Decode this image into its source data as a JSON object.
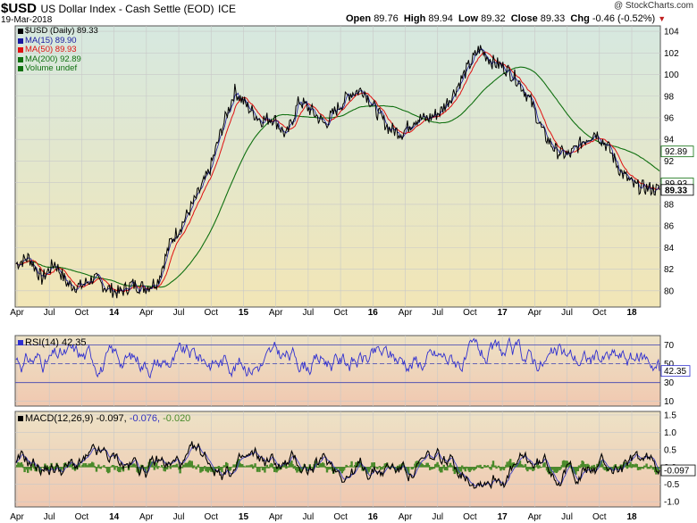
{
  "header": {
    "symbol": "$USD",
    "name": "US Dollar Index - Cash Settle (EOD)",
    "exchange": "ICE",
    "date": "19-Mar-2018",
    "ohlc": [
      {
        "label": "Open",
        "value": "89.76"
      },
      {
        "label": "High",
        "value": "89.94"
      },
      {
        "label": "Low",
        "value": "89.32"
      },
      {
        "label": "Close",
        "value": "89.33"
      }
    ],
    "change_label": "Chg",
    "change_value": "-0.46 (-0.52%)",
    "watermark": "@ StockCharts.com"
  },
  "legend": [
    {
      "text": "$USD (Daily) 89.33",
      "color": "#000000"
    },
    {
      "text": "MA(15) 89.90",
      "color": "#1a1aa0"
    },
    {
      "text": "MA(50) 89.93",
      "color": "#e01010"
    },
    {
      "text": "MA(200) 92.89",
      "color": "#107010"
    },
    {
      "text": "Volume undef",
      "color": "#107010"
    }
  ],
  "rsi_label": {
    "name": "RSI(14)",
    "value": "42.35"
  },
  "macd_label": {
    "name": "MACD(12,26,9)",
    "v1": "-0.097,",
    "v2": "-0.076,",
    "v3": "-0.020"
  },
  "colors": {
    "price": "#000000",
    "ma15": "#1a1aa0",
    "ma50": "#e01010",
    "ma200": "#107010",
    "rsi": "#3030d0",
    "macd": "#000000",
    "signal": "#4040c0",
    "histogram": "#4a8a2a",
    "grid": "#c8c8c8",
    "main_top": "#d6e8e0",
    "main_bottom": "#f2e6b6",
    "ind_top": "#ede2c6",
    "ind_bottom": "#f0c8b0",
    "guide": "#4040b0"
  },
  "chart_data": {
    "type": "line",
    "title": "$USD US Dollar Index - Cash Settle (EOD) ICE",
    "x_labels": [
      "Apr",
      "Jul",
      "Oct",
      "14",
      "Apr",
      "Jul",
      "Oct",
      "15",
      "Apr",
      "Jul",
      "Oct",
      "16",
      "Apr",
      "Jul",
      "Oct",
      "17",
      "Apr",
      "Jul",
      "Oct",
      "18"
    ],
    "bold_x_labels": [
      "14",
      "15",
      "16",
      "17",
      "18"
    ],
    "price_panel": {
      "ylim": [
        78.5,
        104.5
      ],
      "yticks": [
        80,
        82,
        84,
        86,
        88,
        90,
        92,
        94,
        96,
        98,
        100,
        102,
        104
      ],
      "price_tags": [
        {
          "label": "92.89",
          "value": 92.89
        },
        {
          "label": "89.93",
          "value": 89.93
        },
        {
          "label": "89.33",
          "value": 89.33,
          "bold": true
        }
      ],
      "series": [
        {
          "name": "$USD (Daily)",
          "anchors": [
            [
              0,
              82.5
            ],
            [
              3,
              83.1
            ],
            [
              6,
              81.1
            ],
            [
              9,
              82.6
            ],
            [
              12,
              80.6
            ],
            [
              15,
              80.4
            ],
            [
              18,
              81.2
            ],
            [
              21,
              80.3
            ],
            [
              24,
              79.8
            ],
            [
              27,
              80.6
            ],
            [
              30,
              80.3
            ],
            [
              33,
              80.9
            ],
            [
              36,
              84.5
            ],
            [
              39,
              86.4
            ],
            [
              42,
              88.6
            ],
            [
              45,
              91.0
            ],
            [
              48,
              95.0
            ],
            [
              51,
              98.5
            ],
            [
              54,
              97.0
            ],
            [
              57,
              95.8
            ],
            [
              60,
              96.0
            ],
            [
              63,
              94.3
            ],
            [
              66,
              97.6
            ],
            [
              69,
              96.6
            ],
            [
              72,
              95.4
            ],
            [
              75,
              96.9
            ],
            [
              78,
              98.3
            ],
            [
              81,
              98.6
            ],
            [
              84,
              96.6
            ],
            [
              87,
              95.0
            ],
            [
              90,
              94.6
            ],
            [
              93,
              95.9
            ],
            [
              96,
              95.9
            ],
            [
              99,
              96.6
            ],
            [
              102,
              98.3
            ],
            [
              105,
              100.4
            ],
            [
              108,
              102.4
            ],
            [
              111,
              101.2
            ],
            [
              114,
              100.6
            ],
            [
              117,
              99.5
            ],
            [
              120,
              97.5
            ],
            [
              123,
              94.5
            ],
            [
              126,
              92.9
            ],
            [
              129,
              92.5
            ],
            [
              132,
              93.8
            ],
            [
              135,
              94.7
            ],
            [
              138,
              93.3
            ],
            [
              141,
              91.0
            ],
            [
              144,
              89.7
            ],
            [
              147,
              89.5
            ],
            [
              150,
              89.33
            ]
          ]
        },
        {
          "name": "MA(15)",
          "value": 89.9
        },
        {
          "name": "MA(50)",
          "value": 89.93
        },
        {
          "name": "MA(200)",
          "value": 92.89
        }
      ]
    },
    "rsi_panel": {
      "ylim": [
        5,
        80
      ],
      "yticks": [
        10,
        30,
        50,
        70
      ],
      "guides": [
        30,
        50,
        70
      ],
      "last": 42.35
    },
    "macd_panel": {
      "ylim": [
        -1.15,
        1.6
      ],
      "yticks": [
        -1.0,
        -0.5,
        0.0,
        0.5,
        1.0,
        1.5
      ],
      "last": -0.097
    }
  }
}
